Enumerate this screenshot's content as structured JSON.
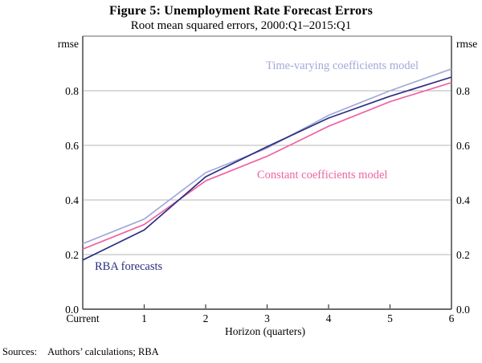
{
  "header": {
    "title": "Figure 5: Unemployment Rate Forecast Errors",
    "subtitle": "Root mean squared errors, 2000:Q1–2015:Q1"
  },
  "footer": {
    "sources_label": "Sources:",
    "sources_text": "Authors’ calculations; RBA"
  },
  "chart_data": {
    "type": "line",
    "title": "Figure 5: Unemployment Rate Forecast Errors",
    "subtitle": "Root mean squared errors, 2000:Q1–2015:Q1",
    "xlabel": "Horizon (quarters)",
    "ylabel": "rmse",
    "x_categories": [
      "Current",
      "1",
      "2",
      "3",
      "4",
      "5",
      "6"
    ],
    "ylim": [
      0.0,
      1.0
    ],
    "ytick_values": [
      0.0,
      0.2,
      0.4,
      0.6,
      0.8
    ],
    "ytick_labels": [
      "0.0",
      "0.2",
      "0.4",
      "0.6",
      "0.8"
    ],
    "grid": "horizontal-gridlines",
    "legend_position": "inline-labels",
    "colors": {
      "gridline": "#b5b5b5",
      "frame_top": "#999999",
      "frame": "#3a3a3a"
    },
    "series": [
      {
        "name": "Time-varying coefficients model",
        "color": "#a0aad7",
        "values": [
          0.24,
          0.33,
          0.5,
          0.59,
          0.71,
          0.8,
          0.88
        ]
      },
      {
        "name": "Constant coefficients model",
        "color": "#ef63a2",
        "values": [
          0.22,
          0.31,
          0.47,
          0.56,
          0.67,
          0.76,
          0.83
        ]
      },
      {
        "name": "RBA forecasts",
        "color": "#2b2e83",
        "values": [
          0.18,
          0.29,
          0.485,
          0.595,
          0.7,
          0.78,
          0.85
        ]
      }
    ]
  }
}
